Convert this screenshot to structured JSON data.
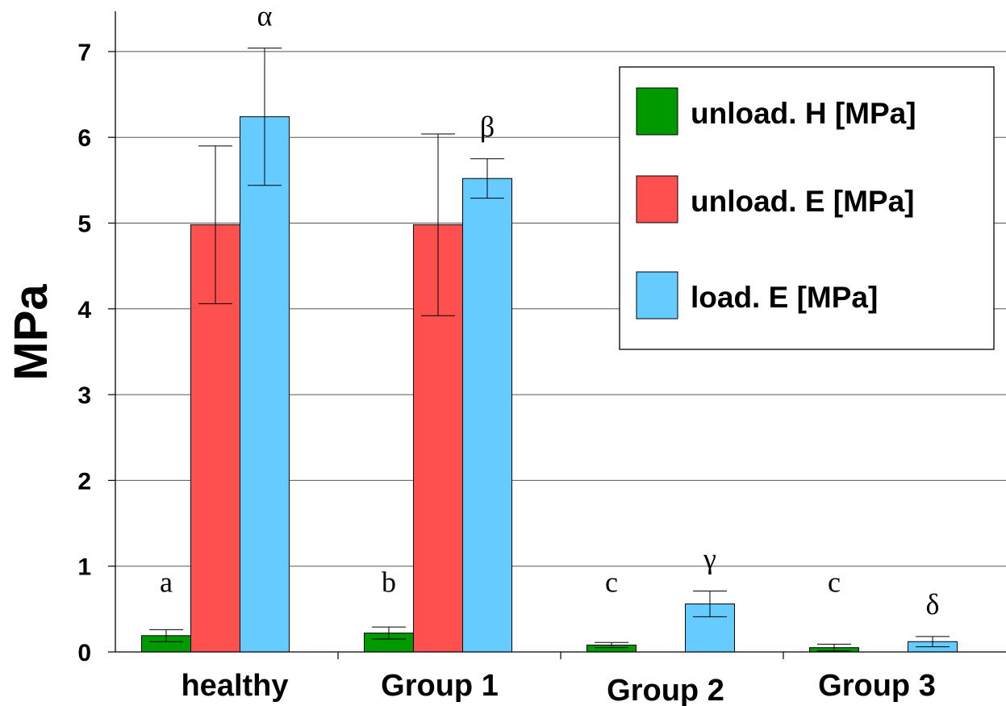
{
  "chart_data": {
    "type": "bar",
    "ylabel": "MPa",
    "xlabel": "",
    "ylim": [
      0,
      7.3
    ],
    "yticks": [
      "0",
      "1",
      "2",
      "3",
      "4",
      "5",
      "6",
      "7"
    ],
    "grid": true,
    "legend_position": "top-right",
    "categories": [
      "healthy",
      "Group 1",
      "Group 2",
      "Group 3"
    ],
    "series": [
      {
        "name": "unload. H [MPa]",
        "color": "#009900",
        "values": [
          0.19,
          0.22,
          0.08,
          0.05
        ],
        "errors": [
          0.07,
          0.07,
          0.03,
          0.04
        ],
        "annotations": [
          "a",
          "b",
          "c",
          "c"
        ]
      },
      {
        "name": "unload. E [MPa]",
        "color": "#ff5050",
        "values": [
          4.98,
          4.98,
          null,
          null
        ],
        "errors": [
          0.92,
          1.06,
          null,
          null
        ],
        "annotations": [
          "",
          "",
          "",
          ""
        ]
      },
      {
        "name": "load. E [MPa]",
        "color": "#66ccff",
        "values": [
          6.24,
          5.52,
          0.56,
          0.12
        ],
        "errors": [
          0.8,
          0.23,
          0.15,
          0.06
        ],
        "annotations": [
          "α",
          "β",
          "γ",
          "δ"
        ]
      }
    ]
  }
}
